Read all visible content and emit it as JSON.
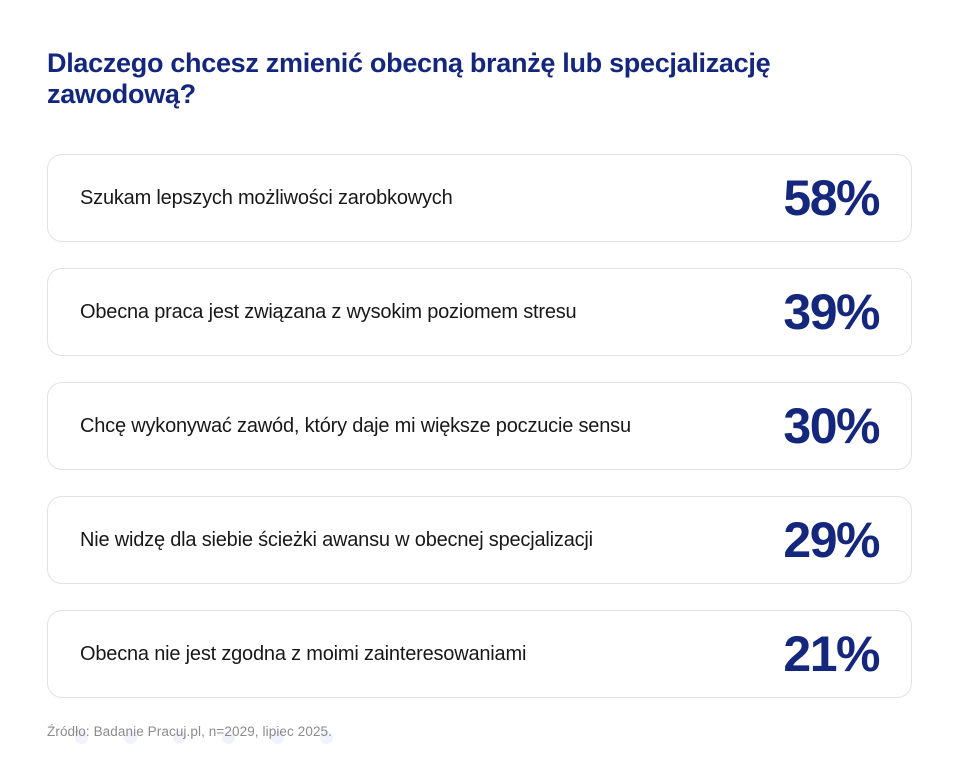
{
  "title": "Dlaczego chcesz zmienić obecną branżę lub specjalizację zawodową?",
  "rows": [
    {
      "label": "Szukam lepszych możliwości zarobkowych",
      "value_label": "58%"
    },
    {
      "label": "Obecna praca jest związana z wysokim poziomem stresu",
      "value_label": "39%"
    },
    {
      "label": "Chcę wykonywać zawód, który daje mi większe poczucie sensu",
      "value_label": "30%"
    },
    {
      "label": "Nie widzę dla siebie ścieżki awansu w obecnej specjalizacji",
      "value_label": "29%"
    },
    {
      "label": "Obecna nie jest zgodna z moimi zainteresowaniami",
      "value_label": "21%"
    }
  ],
  "footer": {
    "source": "Źródło: Badanie Pracuj.pl, n=2029, lipiec 2025."
  },
  "colors": {
    "navy": "#14277d",
    "card_border": "#e2e2e2",
    "body_text": "#181818",
    "source_gray": "#8c8c8c"
  },
  "chart_data": {
    "type": "bar",
    "title": "Dlaczego chcesz zmienić obecną branżę lub specjalizację zawodową?",
    "categories": [
      "Szukam lepszych możliwości zarobkowych",
      "Obecna praca jest związana z wysokim poziomem stresu",
      "Chcę wykonywać zawód, który daje mi większe poczucie sensu",
      "Nie widzę dla siebie ścieżki awansu w obecnej specjalizacji",
      "Obecna nie jest zgodna z moimi zainteresowaniami"
    ],
    "values": [
      58,
      39,
      30,
      29,
      21
    ],
    "unit": "%",
    "xlabel": "",
    "ylabel": "",
    "legend": false,
    "grid": false,
    "source": "Źródło: Badanie Pracuj.pl, n=2029, lipiec 2025."
  }
}
